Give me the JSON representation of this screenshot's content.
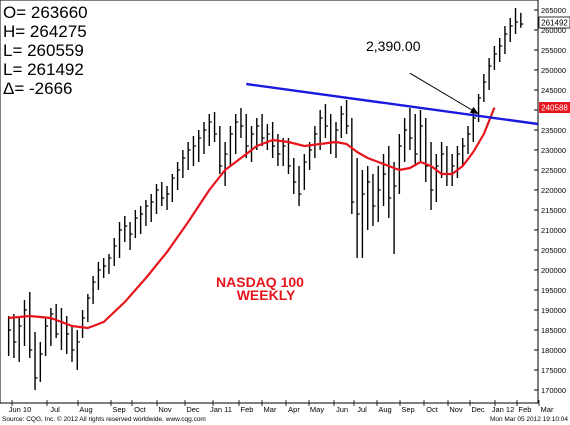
{
  "ohlc_box": {
    "lines": [
      "O= 263660",
      "H= 264275",
      "L= 260559",
      "L= 261492",
      "Δ=   -2666"
    ]
  },
  "annotations": {
    "callout": "2,390.00",
    "title_line1": "NASDAQ 100",
    "title_line2": "WEEKLY",
    "price_badge_last": "261492",
    "price_badge_ma": "240588"
  },
  "footer": {
    "left": "Source: CQG, Inc. © 2012 All rights reserved worldwide. www.cqg.com",
    "right": "Mon Mar 05 2012 19:10:04"
  },
  "colors": {
    "bars": "#000000",
    "moving_average": "#e8141b",
    "trendline": "#1a1adf",
    "callout_text": "#000000",
    "title_text": "#e8141b",
    "badge_ma_bg": "#e8141b"
  },
  "chart_data": {
    "type": "ohlc",
    "x_axis_labels": [
      "Jun 10",
      "Jul",
      "Aug",
      "Sep",
      "Oct",
      "Nov",
      "Dec",
      "Jan 11",
      "Feb",
      "Mar",
      "Apr",
      "May",
      "Jun",
      "Jul",
      "Aug",
      "Sep",
      "Oct",
      "Nov",
      "Dec",
      "Jan 12",
      "Feb",
      "Mar"
    ],
    "y_ticks": [
      170000,
      175000,
      180000,
      185000,
      190000,
      195000,
      200000,
      205000,
      210000,
      215000,
      220000,
      225000,
      230000,
      235000,
      240000,
      245000,
      250000,
      255000,
      260000,
      265000
    ],
    "ylim": [
      167000,
      267000
    ],
    "bars": [
      {
        "week": 0,
        "high": 188500,
        "low": 178500,
        "close": 185000
      },
      {
        "week": 1,
        "high": 189000,
        "low": 178000,
        "close": 182000
      },
      {
        "week": 2,
        "high": 188000,
        "low": 177000,
        "close": 186000
      },
      {
        "week": 3,
        "high": 192500,
        "low": 181000,
        "close": 190000
      },
      {
        "week": 4,
        "high": 194500,
        "low": 178000,
        "close": 180000
      },
      {
        "week": 5,
        "high": 184500,
        "low": 170000,
        "close": 173000
      },
      {
        "week": 6,
        "high": 182000,
        "low": 172000,
        "close": 179000
      },
      {
        "week": 7,
        "high": 188000,
        "low": 178500,
        "close": 186000
      },
      {
        "week": 8,
        "high": 190500,
        "low": 181000,
        "close": 189000
      },
      {
        "week": 9,
        "high": 191500,
        "low": 183000,
        "close": 184000
      },
      {
        "week": 10,
        "high": 190500,
        "low": 180000,
        "close": 187000
      },
      {
        "week": 11,
        "high": 188500,
        "low": 179000,
        "close": 184000
      },
      {
        "week": 12,
        "high": 186000,
        "low": 177000,
        "close": 180000
      },
      {
        "week": 13,
        "high": 185000,
        "low": 175000,
        "close": 182000
      },
      {
        "week": 14,
        "high": 190000,
        "low": 183000,
        "close": 188000
      },
      {
        "week": 15,
        "high": 194000,
        "low": 187000,
        "close": 193000
      },
      {
        "week": 16,
        "high": 198500,
        "low": 191500,
        "close": 197000
      },
      {
        "week": 17,
        "high": 202000,
        "low": 195000,
        "close": 200000
      },
      {
        "week": 18,
        "high": 203000,
        "low": 198000,
        "close": 201000
      },
      {
        "week": 19,
        "high": 204000,
        "low": 199000,
        "close": 203000
      },
      {
        "week": 20,
        "high": 208000,
        "low": 201000,
        "close": 206000
      },
      {
        "week": 21,
        "high": 212000,
        "low": 203000,
        "close": 210000
      },
      {
        "week": 22,
        "high": 213500,
        "low": 207000,
        "close": 211000
      },
      {
        "week": 23,
        "high": 212000,
        "low": 205000,
        "close": 209000
      },
      {
        "week": 24,
        "high": 215000,
        "low": 208000,
        "close": 213000
      },
      {
        "week": 25,
        "high": 216000,
        "low": 209000,
        "close": 214000
      },
      {
        "week": 26,
        "high": 217500,
        "low": 211000,
        "close": 216000
      },
      {
        "week": 27,
        "high": 219000,
        "low": 212000,
        "close": 217000
      },
      {
        "week": 28,
        "high": 221500,
        "low": 214000,
        "close": 220000
      },
      {
        "week": 29,
        "high": 222000,
        "low": 216000,
        "close": 218000
      },
      {
        "week": 30,
        "high": 221000,
        "low": 215000,
        "close": 219000
      },
      {
        "week": 31,
        "high": 224000,
        "low": 217000,
        "close": 223000
      },
      {
        "week": 32,
        "high": 227000,
        "low": 220000,
        "close": 225000
      },
      {
        "week": 33,
        "high": 230000,
        "low": 223000,
        "close": 228000
      },
      {
        "week": 34,
        "high": 232000,
        "low": 225000,
        "close": 230000
      },
      {
        "week": 35,
        "high": 233500,
        "low": 226000,
        "close": 231000
      },
      {
        "week": 36,
        "high": 235000,
        "low": 227000,
        "close": 233000
      },
      {
        "week": 37,
        "high": 237000,
        "low": 229000,
        "close": 235000
      },
      {
        "week": 38,
        "high": 239000,
        "low": 231000,
        "close": 237000
      },
      {
        "week": 39,
        "high": 239500,
        "low": 232000,
        "close": 234000
      },
      {
        "week": 40,
        "high": 236000,
        "low": 224000,
        "close": 226000
      },
      {
        "week": 41,
        "high": 232000,
        "low": 221000,
        "close": 229000
      },
      {
        "week": 42,
        "high": 236000,
        "low": 226000,
        "close": 234000
      },
      {
        "week": 43,
        "high": 239000,
        "low": 229000,
        "close": 237000
      },
      {
        "week": 44,
        "high": 240500,
        "low": 233000,
        "close": 236000
      },
      {
        "week": 45,
        "high": 239000,
        "low": 228000,
        "close": 231000
      },
      {
        "week": 46,
        "high": 236000,
        "low": 227000,
        "close": 234000
      },
      {
        "week": 47,
        "high": 238000,
        "low": 230000,
        "close": 236000
      },
      {
        "week": 48,
        "high": 239000,
        "low": 231000,
        "close": 233000
      },
      {
        "week": 49,
        "high": 236500,
        "low": 230000,
        "close": 234000
      },
      {
        "week": 50,
        "high": 237000,
        "low": 228000,
        "close": 231000
      },
      {
        "week": 51,
        "high": 234000,
        "low": 226000,
        "close": 229000
      },
      {
        "week": 52,
        "high": 233000,
        "low": 226000,
        "close": 231000
      },
      {
        "week": 53,
        "high": 233000,
        "low": 224000,
        "close": 226000
      },
      {
        "week": 54,
        "high": 228000,
        "low": 219000,
        "close": 222000
      },
      {
        "week": 55,
        "high": 226000,
        "low": 216000,
        "close": 219000
      },
      {
        "week": 56,
        "high": 229000,
        "low": 220000,
        "close": 227000
      },
      {
        "week": 57,
        "high": 232000,
        "low": 225000,
        "close": 230000
      },
      {
        "week": 58,
        "high": 236000,
        "low": 228000,
        "close": 234000
      },
      {
        "week": 59,
        "high": 240000,
        "low": 230000,
        "close": 238000
      },
      {
        "week": 60,
        "high": 241500,
        "low": 233000,
        "close": 236000
      },
      {
        "week": 61,
        "high": 239000,
        "low": 229000,
        "close": 232000
      },
      {
        "week": 62,
        "high": 237000,
        "low": 228000,
        "close": 235000
      },
      {
        "week": 63,
        "high": 241000,
        "low": 233000,
        "close": 239000
      },
      {
        "week": 64,
        "high": 242500,
        "low": 234000,
        "close": 236000
      },
      {
        "week": 65,
        "high": 238000,
        "low": 214000,
        "close": 217000
      },
      {
        "week": 66,
        "high": 228000,
        "low": 203000,
        "close": 214000
      },
      {
        "week": 67,
        "high": 225000,
        "low": 203000,
        "close": 219000
      },
      {
        "week": 68,
        "high": 226000,
        "low": 210000,
        "close": 222000
      },
      {
        "week": 69,
        "high": 224000,
        "low": 211000,
        "close": 216000
      },
      {
        "week": 70,
        "high": 226000,
        "low": 212000,
        "close": 220000
      },
      {
        "week": 71,
        "high": 229000,
        "low": 216000,
        "close": 224000
      },
      {
        "week": 72,
        "high": 231000,
        "low": 213000,
        "close": 218000
      },
      {
        "week": 73,
        "high": 227000,
        "low": 204000,
        "close": 221000
      },
      {
        "week": 74,
        "high": 234000,
        "low": 219000,
        "close": 231000
      },
      {
        "week": 75,
        "high": 238000,
        "low": 227000,
        "close": 235000
      },
      {
        "week": 76,
        "high": 240500,
        "low": 230000,
        "close": 233000
      },
      {
        "week": 77,
        "high": 239000,
        "low": 226000,
        "close": 229000
      },
      {
        "week": 78,
        "high": 240000,
        "low": 227000,
        "close": 236000
      },
      {
        "week": 79,
        "high": 238000,
        "low": 222000,
        "close": 226000
      },
      {
        "week": 80,
        "high": 232000,
        "low": 215000,
        "close": 220000
      },
      {
        "week": 81,
        "high": 229000,
        "low": 217000,
        "close": 226000
      },
      {
        "week": 82,
        "high": 232000,
        "low": 223000,
        "close": 229000
      },
      {
        "week": 83,
        "high": 231000,
        "low": 221000,
        "close": 224000
      },
      {
        "week": 84,
        "high": 229000,
        "low": 221000,
        "close": 226000
      },
      {
        "week": 85,
        "high": 231000,
        "low": 223000,
        "close": 229000
      },
      {
        "week": 86,
        "high": 233000,
        "low": 226000,
        "close": 231000
      },
      {
        "week": 87,
        "high": 236000,
        "low": 229000,
        "close": 234000
      },
      {
        "week": 88,
        "high": 240000,
        "low": 232000,
        "close": 238000
      },
      {
        "week": 89,
        "high": 244000,
        "low": 237000,
        "close": 243000
      },
      {
        "week": 90,
        "high": 249000,
        "low": 242000,
        "close": 247000
      },
      {
        "week": 91,
        "high": 253000,
        "low": 245000,
        "close": 251000
      },
      {
        "week": 92,
        "high": 256000,
        "low": 250000,
        "close": 254000
      },
      {
        "week": 93,
        "high": 258000,
        "low": 252000,
        "close": 256000
      },
      {
        "week": 94,
        "high": 261000,
        "low": 254000,
        "close": 259000
      },
      {
        "week": 95,
        "high": 263000,
        "low": 257000,
        "close": 261000
      },
      {
        "week": 96,
        "high": 265500,
        "low": 259000,
        "close": 262000
      },
      {
        "week": 97,
        "high": 264275,
        "low": 260559,
        "close": 261492
      }
    ],
    "moving_average": [
      [
        0,
        188000
      ],
      [
        4,
        188500
      ],
      [
        8,
        188000
      ],
      [
        12,
        186000
      ],
      [
        15,
        185500
      ],
      [
        18,
        187000
      ],
      [
        22,
        192000
      ],
      [
        26,
        198000
      ],
      [
        30,
        204500
      ],
      [
        34,
        212000
      ],
      [
        38,
        220000
      ],
      [
        41,
        225000
      ],
      [
        44,
        228000
      ],
      [
        47,
        231000
      ],
      [
        50,
        232500
      ],
      [
        53,
        232000
      ],
      [
        56,
        231000
      ],
      [
        59,
        231500
      ],
      [
        62,
        232000
      ],
      [
        64,
        231500
      ],
      [
        66,
        229500
      ],
      [
        68,
        228000
      ],
      [
        70,
        227000
      ],
      [
        72,
        226000
      ],
      [
        74,
        225000
      ],
      [
        76,
        225500
      ],
      [
        78,
        227000
      ],
      [
        80,
        226000
      ],
      [
        82,
        224000
      ],
      [
        84,
        224000
      ],
      [
        86,
        226000
      ],
      [
        88,
        229500
      ],
      [
        90,
        234000
      ],
      [
        92,
        240588
      ]
    ],
    "trendline": {
      "from": [
        45,
        246500
      ],
      "to": [
        99,
        236500
      ]
    },
    "callout_arrow": {
      "from": [
        76,
        249200
      ],
      "to": [
        89,
        239000
      ]
    }
  }
}
